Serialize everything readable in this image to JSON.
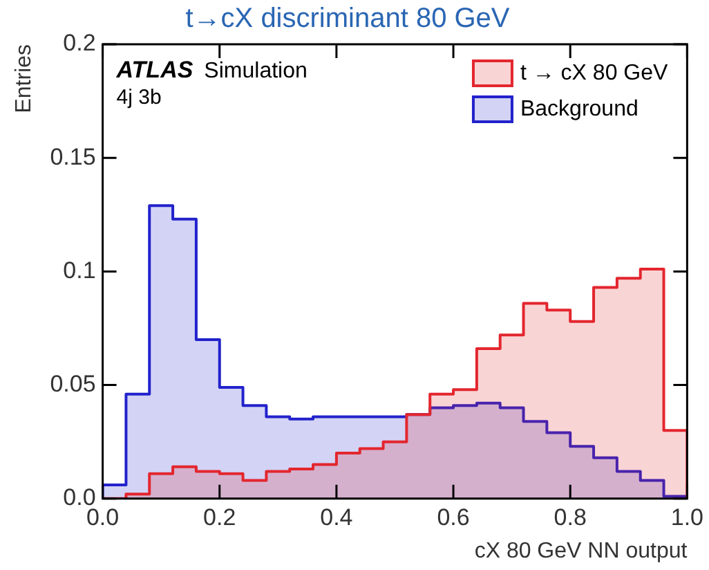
{
  "chart_data": {
    "type": "histogram",
    "title": "t→cX discriminant 80 GeV",
    "xlabel": "cX 80 GeV NN output",
    "ylabel": "Entries",
    "annotations": [
      "ATLAS",
      "Simulation",
      "4j 3b"
    ],
    "bins": [
      0,
      0.04,
      0.08,
      0.12,
      0.16,
      0.2,
      0.24,
      0.28,
      0.32,
      0.36,
      0.4,
      0.44,
      0.48,
      0.52,
      0.56,
      0.6,
      0.64,
      0.68,
      0.72,
      0.76,
      0.8,
      0.84,
      0.88,
      0.92,
      0.96,
      1.0
    ],
    "series": [
      {
        "name": "t → cX 80 GeV",
        "color": "#e3262e",
        "values": [
          0,
          0.002,
          0.011,
          0.014,
          0.012,
          0.011,
          0.008,
          0.012,
          0.013,
          0.015,
          0.02,
          0.022,
          0.025,
          0.037,
          0.046,
          0.048,
          0.066,
          0.072,
          0.086,
          0.083,
          0.078,
          0.093,
          0.097,
          0.101,
          0.03
        ]
      },
      {
        "name": "Background",
        "color": "#2222cc",
        "values": [
          0.006,
          0.046,
          0.129,
          0.123,
          0.07,
          0.049,
          0.041,
          0.036,
          0.035,
          0.036,
          0.036,
          0.036,
          0.036,
          0.037,
          0.04,
          0.041,
          0.042,
          0.04,
          0.034,
          0.029,
          0.023,
          0.018,
          0.012,
          0.008,
          0.001
        ]
      }
    ],
    "xlim": [
      0,
      1
    ],
    "xticks": [
      {
        "value": 0,
        "label": "0.0"
      },
      {
        "value": 0.2,
        "label": "0.2"
      },
      {
        "value": 0.4,
        "label": "0.4"
      },
      {
        "value": 0.6,
        "label": "0.6"
      },
      {
        "value": 0.8,
        "label": "0.8"
      },
      {
        "value": 1,
        "label": "1.0"
      }
    ],
    "ylim": [
      0,
      0.2
    ],
    "yticks": [
      {
        "value": 0,
        "label": "0.0"
      },
      0.05,
      0.1,
      0.15,
      0.2
    ],
    "grid": false,
    "legend": "top right"
  }
}
